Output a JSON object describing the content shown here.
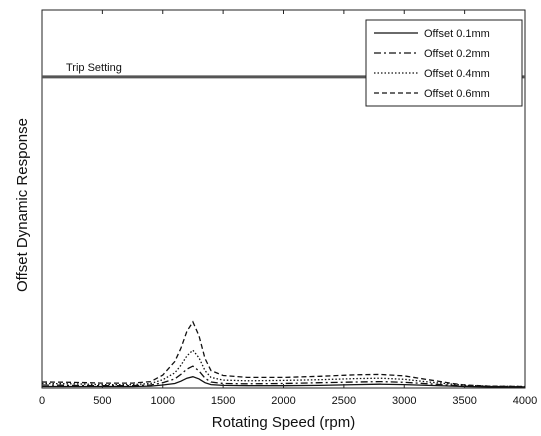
{
  "chart_data": {
    "type": "line",
    "title": "",
    "xlabel": "Rotating Speed (rpm)",
    "ylabel": "Offset Dynamic Response",
    "xlim": [
      0,
      4000
    ],
    "ylim": [
      0,
      1
    ],
    "xticks": [
      "0",
      "500",
      "1000",
      "1500",
      "2000",
      "2500",
      "3000",
      "3500",
      "4000"
    ],
    "grid": false,
    "legend_position": "top-right",
    "annotations": [
      {
        "text": "Trip Setting",
        "y": 0.823
      }
    ],
    "series": [
      {
        "name": "Offset 0.1mm",
        "dash": "solid",
        "x": [
          0,
          250,
          500,
          750,
          900,
          1000,
          1100,
          1150,
          1200,
          1250,
          1300,
          1350,
          1400,
          1500,
          1700,
          2000,
          2300,
          2600,
          2800,
          3000,
          3200,
          3400,
          3500,
          3700,
          4000
        ],
        "y": [
          0.004,
          0.004,
          0.004,
          0.004,
          0.005,
          0.008,
          0.012,
          0.018,
          0.026,
          0.03,
          0.024,
          0.014,
          0.009,
          0.007,
          0.006,
          0.006,
          0.007,
          0.009,
          0.01,
          0.009,
          0.007,
          0.005,
          0.004,
          0.003,
          0.003
        ]
      },
      {
        "name": "Offset 0.2mm",
        "dash": "dashdot",
        "x": [
          0,
          250,
          500,
          750,
          900,
          1000,
          1100,
          1150,
          1200,
          1250,
          1300,
          1350,
          1400,
          1500,
          1700,
          2000,
          2300,
          2600,
          2800,
          3000,
          3200,
          3400,
          3500,
          3700,
          4000
        ],
        "y": [
          0.008,
          0.007,
          0.006,
          0.006,
          0.008,
          0.014,
          0.024,
          0.036,
          0.05,
          0.058,
          0.045,
          0.026,
          0.016,
          0.012,
          0.011,
          0.012,
          0.014,
          0.016,
          0.017,
          0.015,
          0.011,
          0.007,
          0.005,
          0.004,
          0.003
        ]
      },
      {
        "name": "Offset 0.4mm",
        "dash": "dotted",
        "x": [
          0,
          250,
          500,
          750,
          900,
          1000,
          1100,
          1150,
          1200,
          1250,
          1300,
          1350,
          1400,
          1500,
          1700,
          2000,
          2300,
          2600,
          2800,
          3000,
          3200,
          3400,
          3500,
          3700,
          4000
        ],
        "y": [
          0.012,
          0.011,
          0.009,
          0.009,
          0.012,
          0.022,
          0.04,
          0.06,
          0.085,
          0.1,
          0.08,
          0.046,
          0.028,
          0.021,
          0.019,
          0.02,
          0.022,
          0.025,
          0.026,
          0.023,
          0.016,
          0.01,
          0.007,
          0.005,
          0.004
        ]
      },
      {
        "name": "Offset 0.6mm",
        "dash": "dashed",
        "x": [
          0,
          250,
          500,
          750,
          900,
          1000,
          1100,
          1150,
          1200,
          1250,
          1300,
          1350,
          1400,
          1500,
          1700,
          2000,
          2300,
          2600,
          2800,
          3000,
          3200,
          3400,
          3500,
          3700,
          4000
        ],
        "y": [
          0.016,
          0.015,
          0.013,
          0.013,
          0.017,
          0.034,
          0.07,
          0.105,
          0.15,
          0.175,
          0.138,
          0.078,
          0.046,
          0.033,
          0.028,
          0.028,
          0.031,
          0.035,
          0.036,
          0.032,
          0.022,
          0.012,
          0.008,
          0.005,
          0.004
        ]
      }
    ]
  }
}
